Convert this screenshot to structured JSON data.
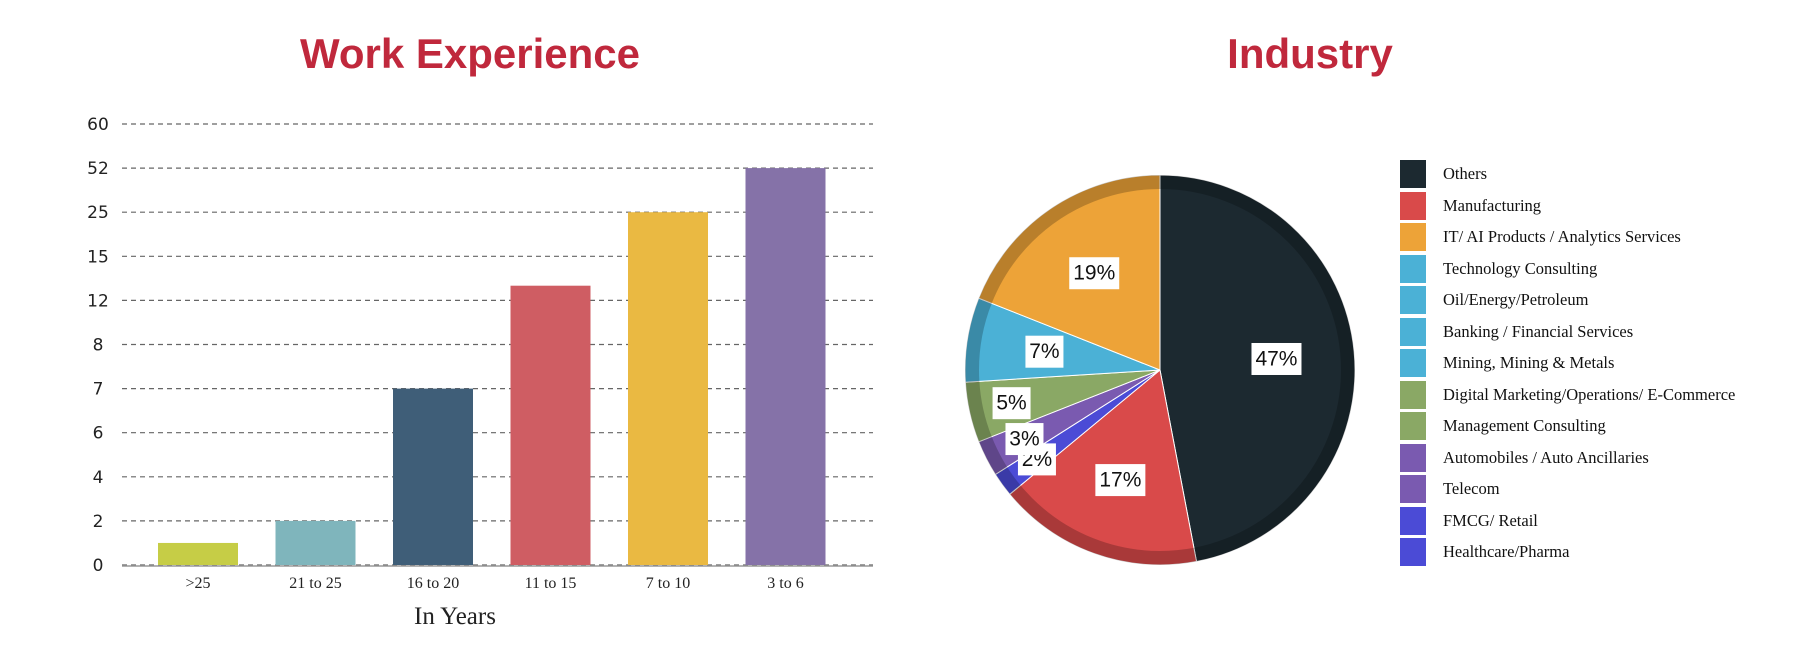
{
  "chart_data": [
    {
      "type": "bar",
      "title": "Work Experience",
      "xlabel": "In Years",
      "ylabel": "",
      "y_tick_labels": [
        "0",
        "2",
        "4",
        "6",
        "7",
        "8",
        "12",
        "15",
        "25",
        "52",
        "60"
      ],
      "categories": [
        ">25",
        "21 to 25",
        "16 to 20",
        "11 to 15",
        "7 to 10",
        "3 to 6"
      ],
      "values": [
        1,
        2,
        7,
        13,
        25,
        52
      ],
      "colors": [
        "#c6cd46",
        "#7fb5bc",
        "#3f5e78",
        "#cf5d63",
        "#eab942",
        "#8572a8"
      ],
      "grid": true
    },
    {
      "type": "pie",
      "title": "Industry",
      "slices": [
        {
          "label": "Others",
          "value": 47,
          "color": "#1c2930"
        },
        {
          "label": "Manufacturing",
          "value": 17,
          "color": "#d94a4a"
        },
        {
          "label": "Healthcare/Pharma",
          "value": 2,
          "color": "#4b4bd6"
        },
        {
          "label": "Telecom",
          "value": 3,
          "color": "#7a5ab0"
        },
        {
          "label": "Management Consulting",
          "value": 5,
          "color": "#8aa865"
        },
        {
          "label": "Technology Consulting",
          "value": 7,
          "color": "#4bb1d6"
        },
        {
          "label": "IT/ AI Products / Analytics Services",
          "value": 19,
          "color": "#eda338"
        }
      ],
      "data_labels": [
        "47%",
        "17%",
        "2%",
        "3%",
        "5%",
        "7%",
        "19%"
      ],
      "legend_position": "right",
      "legend": [
        {
          "label": "Others",
          "color": "#1c2930"
        },
        {
          "label": "Manufacturing",
          "color": "#d94a4a"
        },
        {
          "label": "IT/ AI Products / Analytics Services",
          "color": "#eda338"
        },
        {
          "label": "Technology Consulting",
          "color": "#4bb1d6"
        },
        {
          "label": "Oil/Energy/Petroleum",
          "color": "#4bb1d6"
        },
        {
          "label": "Banking / Financial Services",
          "color": "#4bb1d6"
        },
        {
          "label": "Mining, Mining & Metals",
          "color": "#4bb1d6"
        },
        {
          "label": "Digital Marketing/Operations/ E-Commerce",
          "color": "#8aa865"
        },
        {
          "label": "Management Consulting",
          "color": "#8aa865"
        },
        {
          "label": "Automobiles / Auto Ancillaries",
          "color": "#7a5ab0"
        },
        {
          "label": "Telecom",
          "color": "#7a5ab0"
        },
        {
          "label": "FMCG/ Retail",
          "color": "#4b4bd6"
        },
        {
          "label": "Healthcare/Pharma",
          "color": "#4b4bd6"
        }
      ]
    }
  ]
}
